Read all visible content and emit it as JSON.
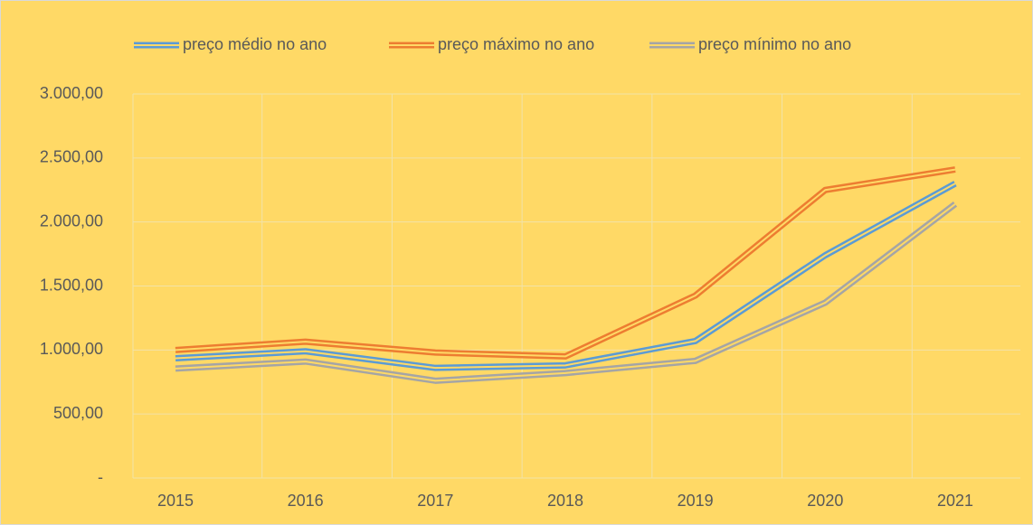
{
  "chart_data": {
    "type": "line",
    "categories": [
      "2015",
      "2016",
      "2017",
      "2018",
      "2019",
      "2020",
      "2021"
    ],
    "series": [
      {
        "name": "preço médio no ano",
        "color": "#5B9BD5",
        "values": [
          935,
          990,
          860,
          880,
          1070,
          1740,
          2300
        ]
      },
      {
        "name": "preço máximo no ano",
        "color": "#ED7D31",
        "values": [
          1000,
          1065,
          980,
          950,
          1425,
          2250,
          2410
        ]
      },
      {
        "name": "preço mínimo no ano",
        "color": "#A5A5A5",
        "values": [
          855,
          910,
          760,
          820,
          915,
          1370,
          2140
        ]
      }
    ],
    "ylim": [
      0,
      3000
    ],
    "yticks": [
      {
        "value": 0,
        "label": "-"
      },
      {
        "value": 500,
        "label": "500,00"
      },
      {
        "value": 1000,
        "label": "1.000,00"
      },
      {
        "value": 1500,
        "label": "1.500,00"
      },
      {
        "value": 2000,
        "label": "2.000,00"
      },
      {
        "value": 2500,
        "label": "2.500,00"
      },
      {
        "value": 3000,
        "label": "3.000,00"
      }
    ],
    "grid": true,
    "legend": "top",
    "background": "#FFD966"
  }
}
